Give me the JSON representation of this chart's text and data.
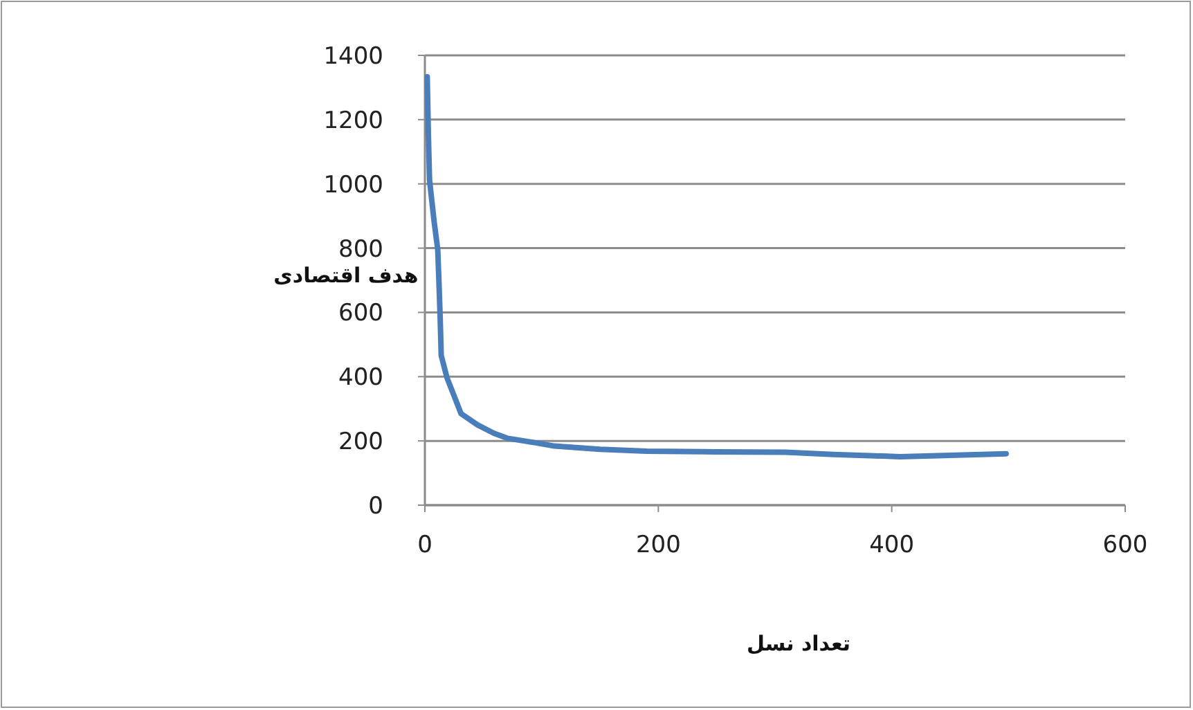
{
  "chart_data": {
    "type": "line",
    "xlabel": "تعداد نسل",
    "ylabel": "هدف اقتصادی",
    "x": [
      2,
      3,
      4,
      8,
      11,
      12,
      13,
      14,
      19,
      31,
      45,
      59,
      71,
      95,
      111,
      150,
      190,
      250,
      309,
      350,
      407,
      450,
      498
    ],
    "series": [
      {
        "color": "#4a7ebb",
        "values": [
          1333,
          1150,
          1011,
          880,
          796,
          700,
          595,
          466,
          396,
          285,
          250,
          224,
          208,
          194,
          184,
          174,
          168,
          166,
          165,
          158,
          151,
          155,
          160
        ]
      }
    ],
    "xlim": [
      0,
      600
    ],
    "xticks": [
      0,
      200,
      400,
      600
    ],
    "ylim": [
      0,
      1400
    ],
    "yticks": [
      0,
      200,
      400,
      600,
      800,
      1000,
      1200,
      1400
    ],
    "grid": "y",
    "marker": "none",
    "line_style": "solid"
  }
}
